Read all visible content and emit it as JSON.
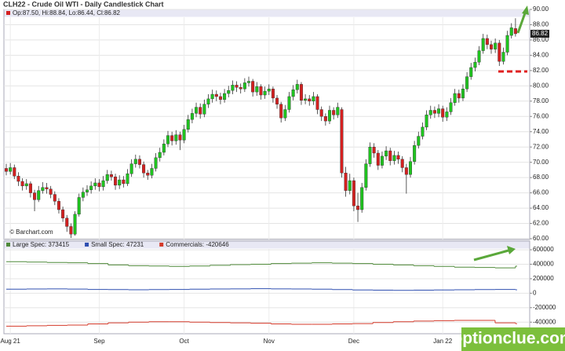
{
  "chart_data": [
    {
      "type": "candlestick",
      "title": "CLH22 - Crude Oil WTI - Daily Candlestick Chart",
      "legend": "Op:87.50, Hi:88.84, Lo:86.44, Cl:86.82",
      "source": "© Barchart.com",
      "watermark": "optionclue.com",
      "up_color": "#1fc41f",
      "down_color": "#d42020",
      "grid": true,
      "categories": [
        null,
        "Aug 21",
        null,
        null,
        null,
        null,
        null,
        null,
        null,
        null,
        null,
        null,
        null,
        null,
        null,
        null,
        null,
        null,
        null,
        null,
        null,
        null,
        null,
        "Sep",
        null,
        null,
        null,
        null,
        null,
        null,
        null,
        null,
        null,
        null,
        null,
        null,
        null,
        null,
        null,
        null,
        null,
        null,
        null,
        null,
        "Oct",
        null,
        null,
        null,
        null,
        null,
        null,
        null,
        null,
        null,
        null,
        null,
        null,
        null,
        null,
        null,
        null,
        null,
        null,
        null,
        null,
        "Nov",
        null,
        null,
        null,
        null,
        null,
        null,
        null,
        null,
        null,
        null,
        null,
        null,
        null,
        null,
        null,
        null,
        null,
        null,
        null,
        null,
        "Dec",
        null,
        null,
        null,
        null,
        null,
        null,
        null,
        null,
        null,
        null,
        null,
        null,
        null,
        null,
        null,
        null,
        null,
        null,
        null,
        null,
        null,
        "Jan 22",
        null,
        null,
        null,
        null,
        null,
        null,
        null,
        null,
        null,
        null,
        null,
        null,
        null,
        null,
        null,
        null,
        null,
        null
      ],
      "open": [
        69.2,
        68.8,
        69.3,
        68.2,
        67.5,
        66.9,
        67.2,
        66.0,
        65.1,
        66.3,
        66.7,
        66.5,
        65.8,
        64.9,
        63.8,
        62.7,
        61.6,
        60.6,
        63.2,
        65.4,
        66.1,
        66.4,
        66.9,
        67.3,
        66.8,
        67.6,
        68.4,
        68.1,
        67.0,
        67.7,
        67.2,
        68.5,
        69.8,
        70.4,
        69.7,
        68.6,
        68.3,
        69.2,
        70.6,
        71.3,
        72.4,
        73.5,
        72.8,
        73.6,
        72.9,
        74.3,
        75.6,
        76.4,
        77.2,
        76.3,
        77.6,
        78.3,
        78.9,
        78.6,
        78.2,
        79.0,
        79.4,
        80.1,
        79.8,
        79.6,
        80.4,
        80.6,
        79.2,
        79.9,
        78.8,
        79.3,
        79.6,
        78.4,
        77.6,
        75.8,
        76.9,
        78.6,
        79.5,
        80.2,
        78.1,
        78.3,
        78.0,
        78.6,
        76.9,
        76.0,
        75.4,
        76.8,
        76.2,
        76.9,
        68.6,
        66.3,
        67.6,
        64.3,
        63.8,
        66.7,
        69.8,
        72.0,
        71.2,
        69.6,
        70.8,
        71.5,
        70.2,
        70.9,
        70.4,
        69.3,
        68.4,
        70.1,
        72.2,
        73.4,
        74.6,
        76.2,
        76.8,
        76.4,
        77.0,
        75.9,
        76.6,
        77.8,
        79.0,
        78.4,
        79.6,
        81.2,
        82.4,
        83.1,
        84.6,
        86.2,
        85.4,
        84.8,
        85.6,
        83.2,
        84.4,
        86.6,
        87.5
      ],
      "high": [
        69.8,
        69.9,
        69.7,
        68.7,
        67.9,
        67.8,
        67.5,
        66.4,
        66.9,
        67.4,
        67.3,
        66.9,
        66.2,
        65.3,
        64.2,
        63.1,
        62.0,
        63.6,
        65.9,
        66.7,
        67.0,
        67.5,
        67.9,
        67.8,
        68.2,
        69.0,
        68.9,
        68.5,
        68.3,
        68.2,
        69.1,
        70.4,
        71.0,
        70.9,
        70.1,
        69.0,
        69.8,
        71.2,
        71.9,
        73.0,
        74.1,
        74.0,
        74.2,
        74.0,
        74.9,
        76.2,
        77.0,
        77.8,
        77.7,
        78.2,
        78.9,
        79.5,
        79.4,
        79.1,
        79.6,
        80.0,
        80.7,
        80.6,
        80.3,
        81.0,
        81.2,
        80.9,
        80.5,
        80.2,
        79.9,
        80.2,
        79.9,
        78.8,
        77.9,
        77.5,
        79.2,
        80.1,
        80.8,
        80.5,
        78.9,
        78.8,
        79.2,
        78.9,
        77.3,
        76.4,
        77.4,
        77.2,
        77.8,
        77.2,
        69.4,
        68.5,
        68.0,
        66.0,
        67.3,
        70.4,
        72.6,
        72.5,
        71.6,
        71.4,
        72.1,
        71.9,
        71.5,
        71.4,
        70.8,
        69.8,
        70.7,
        72.8,
        74.0,
        75.2,
        76.8,
        77.4,
        77.3,
        77.6,
        77.4,
        77.2,
        78.4,
        79.6,
        79.5,
        80.2,
        81.8,
        83.0,
        83.7,
        85.2,
        86.8,
        86.7,
        85.9,
        86.2,
        86.0,
        85.0,
        87.2,
        88.2,
        88.84
      ],
      "low": [
        68.3,
        68.4,
        67.8,
        66.9,
        66.3,
        66.4,
        65.4,
        63.6,
        64.8,
        65.9,
        65.9,
        65.3,
        64.4,
        63.3,
        62.2,
        60.9,
        60.1,
        60.4,
        62.9,
        64.9,
        65.6,
        65.9,
        66.4,
        66.2,
        66.3,
        67.2,
        67.6,
        66.4,
        66.5,
        66.7,
        66.9,
        68.1,
        69.3,
        69.2,
        68.0,
        67.7,
        67.9,
        68.8,
        70.1,
        70.9,
        72.0,
        72.2,
        72.3,
        71.6,
        72.5,
        73.9,
        75.1,
        75.9,
        75.7,
        75.9,
        77.1,
        77.8,
        78.0,
        77.6,
        77.8,
        78.5,
        78.9,
        79.2,
        79.0,
        79.2,
        79.9,
        78.6,
        78.7,
        78.2,
        78.3,
        78.8,
        77.8,
        77.0,
        75.2,
        75.4,
        76.5,
        78.1,
        79.0,
        77.5,
        77.6,
        77.4,
        77.5,
        76.3,
        75.4,
        74.8,
        75.0,
        75.6,
        75.8,
        68.0,
        65.5,
        65.8,
        63.6,
        62.2,
        63.4,
        66.3,
        69.4,
        70.6,
        69.0,
        69.2,
        70.3,
        69.6,
        69.7,
        69.8,
        68.7,
        65.9,
        68.0,
        69.7,
        71.8,
        73.0,
        74.2,
        75.7,
        75.8,
        75.9,
        75.3,
        75.4,
        76.2,
        77.4,
        77.8,
        78.0,
        79.2,
        80.8,
        81.9,
        82.7,
        84.2,
        84.8,
        84.2,
        84.3,
        82.6,
        82.8,
        84.0,
        86.2,
        86.44
      ],
      "close": [
        68.8,
        69.3,
        68.2,
        67.5,
        66.9,
        67.2,
        66.0,
        65.1,
        66.3,
        66.7,
        66.5,
        65.8,
        64.9,
        63.8,
        62.7,
        61.6,
        60.6,
        63.2,
        65.4,
        66.1,
        66.4,
        66.9,
        67.3,
        66.8,
        67.6,
        68.4,
        68.1,
        67.0,
        67.7,
        67.2,
        68.5,
        69.8,
        70.4,
        69.7,
        68.6,
        68.3,
        69.2,
        70.6,
        71.3,
        72.4,
        73.5,
        72.8,
        73.6,
        72.9,
        74.3,
        75.6,
        76.4,
        77.2,
        76.3,
        77.6,
        78.3,
        78.9,
        78.6,
        78.2,
        79.0,
        79.4,
        80.1,
        79.8,
        79.6,
        80.4,
        80.6,
        79.2,
        79.9,
        78.8,
        79.3,
        79.6,
        78.4,
        77.6,
        75.8,
        76.9,
        78.6,
        79.5,
        80.2,
        78.1,
        78.3,
        78.0,
        78.6,
        76.9,
        76.0,
        75.4,
        76.8,
        76.2,
        77.2,
        68.6,
        66.3,
        67.6,
        64.3,
        63.8,
        66.7,
        69.8,
        72.0,
        71.2,
        69.6,
        70.8,
        71.5,
        70.2,
        70.9,
        70.4,
        69.3,
        68.4,
        70.1,
        72.2,
        73.4,
        74.6,
        76.2,
        76.8,
        76.4,
        77.0,
        75.9,
        76.6,
        77.8,
        79.0,
        78.4,
        79.6,
        81.2,
        82.4,
        83.1,
        84.6,
        86.2,
        85.4,
        84.8,
        85.6,
        83.2,
        84.4,
        86.6,
        87.6,
        86.82
      ],
      "ylim": [
        60,
        90
      ],
      "yticks": [
        {
          "value": 60,
          "label": "60.00"
        },
        {
          "value": 62,
          "label": "62.00"
        },
        {
          "value": 64,
          "label": "64.00"
        },
        {
          "value": 66,
          "label": "66.00"
        },
        {
          "value": 68,
          "label": "68.00"
        },
        {
          "value": 70,
          "label": "70.00"
        },
        {
          "value": 72,
          "label": "72.00"
        },
        {
          "value": 74,
          "label": "74.00"
        },
        {
          "value": 76,
          "label": "76.00"
        },
        {
          "value": 78,
          "label": "78.00"
        },
        {
          "value": 80,
          "label": "80.00"
        },
        {
          "value": 82,
          "label": "82.00"
        },
        {
          "value": 84,
          "label": "84.00"
        },
        {
          "value": 86,
          "label": "86.00"
        },
        {
          "value": 88,
          "label": "88.00"
        },
        {
          "value": 90,
          "label": "90.00"
        }
      ]
    },
    {
      "type": "step",
      "grid": true,
      "series": [
        {
          "name": "Large Spec: 373415",
          "color": "#4f8a3a",
          "values": [
            435000,
            430000,
            425000,
            420000,
            410000,
            390000,
            380000,
            375000,
            370000,
            375000,
            385000,
            395000,
            400000,
            410000,
            415000,
            420000,
            415000,
            410000,
            400000,
            390000,
            380000,
            370000,
            360000,
            355000,
            350000,
            373415
          ]
        },
        {
          "name": "Small Spec: 47231",
          "color": "#2f4fb0",
          "values": [
            55000,
            58000,
            60000,
            57000,
            52000,
            50000,
            48000,
            50000,
            52000,
            55000,
            58000,
            60000,
            62000,
            60000,
            58000,
            55000,
            50000,
            45000,
            42000,
            40000,
            42000,
            45000,
            48000,
            50000,
            52000,
            47231
          ]
        },
        {
          "name": "Commercials: -420646",
          "color": "#d43a2a",
          "values": [
            -455000,
            -450000,
            -445000,
            -440000,
            -425000,
            -410000,
            -400000,
            -395000,
            -395000,
            -400000,
            -405000,
            -410000,
            -415000,
            -425000,
            -430000,
            -430000,
            -425000,
            -420000,
            -405000,
            -395000,
            -385000,
            -380000,
            -375000,
            -375000,
            -410000,
            -420646
          ]
        }
      ],
      "ylim": [
        -560000,
        720000
      ],
      "yticks": [
        600000,
        400000,
        200000,
        0,
        -200000,
        -400000
      ]
    }
  ]
}
